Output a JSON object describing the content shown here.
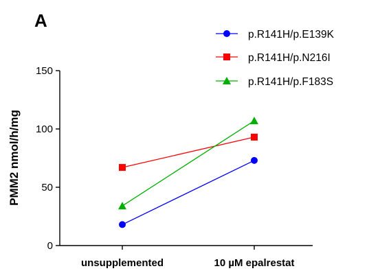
{
  "panel_label": "A",
  "chart_data": {
    "type": "line",
    "title": "",
    "xlabel": "",
    "ylabel": "PMM2 nmol/h/mg",
    "categories": [
      "unsupplemented",
      "10 µM epalrestat"
    ],
    "ylim": [
      0,
      150
    ],
    "yticks": [
      0,
      50,
      100,
      150
    ],
    "grid": false,
    "legend_position": "top-right",
    "series": [
      {
        "name": "p.R141H/p.E139K",
        "values": [
          18,
          73
        ],
        "color": "#0000ff",
        "marker": "circle"
      },
      {
        "name": "p.R141H/p.N216I",
        "values": [
          67,
          93
        ],
        "color": "#ff0000",
        "marker": "square"
      },
      {
        "name": "p.R141H/p.F183S",
        "values": [
          34,
          107
        ],
        "color": "#00b000",
        "marker": "triangle"
      }
    ]
  }
}
